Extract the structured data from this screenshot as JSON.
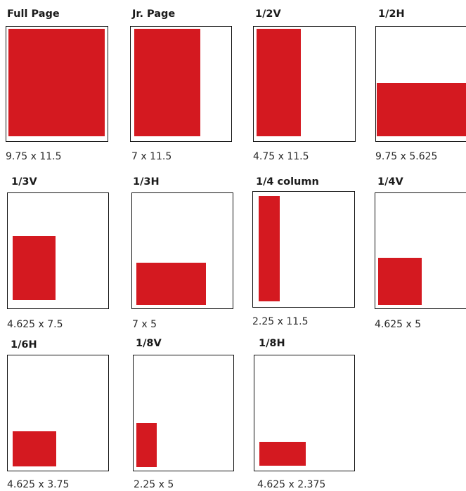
{
  "colors": {
    "ad_fill": "#d41920",
    "frame_border": "#111111"
  },
  "ad_sizes": [
    {
      "id": "full-page",
      "title": "Full Page",
      "dimensions": "9.75 x 11.5"
    },
    {
      "id": "jr-page",
      "title": "Jr. Page",
      "dimensions": "7 x 11.5"
    },
    {
      "id": "half-v",
      "title": "1/2V",
      "dimensions": "4.75 x 11.5"
    },
    {
      "id": "half-h",
      "title": "1/2H",
      "dimensions": "9.75 x 5.625"
    },
    {
      "id": "third-v",
      "title": "1/3V",
      "dimensions": "4.625 x 7.5"
    },
    {
      "id": "third-h",
      "title": "1/3H",
      "dimensions": "7 x 5"
    },
    {
      "id": "quarter-col",
      "title": "1/4 column",
      "dimensions": "2.25 x 11.5"
    },
    {
      "id": "quarter-v",
      "title": "1/4V",
      "dimensions": "4.625 x 5"
    },
    {
      "id": "sixth-h",
      "title": "1/6H",
      "dimensions": "4.625 x 3.75"
    },
    {
      "id": "eighth-v",
      "title": "1/8V",
      "dimensions": "2.25 x 5"
    },
    {
      "id": "eighth-h",
      "title": "1/8H",
      "dimensions": "4.625 x 2.375"
    }
  ]
}
